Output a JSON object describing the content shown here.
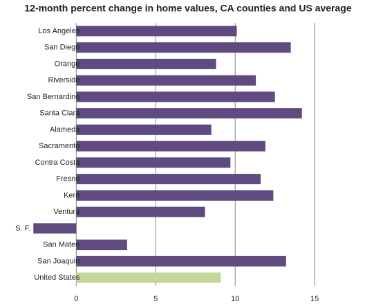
{
  "chart_data": {
    "type": "barh",
    "title": "12-month percent change in home values, CA counties and US average",
    "categories": [
      "Los Angeles",
      "San Diego",
      "Orange",
      "Riverside",
      "San Bernardino",
      "Santa Clara",
      "Alameda",
      "Sacramento",
      "Contra Costa",
      "Fresno",
      "Kern",
      "Ventura",
      "S. F.",
      "San Mateo",
      "San Joaquin",
      "United States"
    ],
    "values": [
      10.1,
      13.5,
      8.8,
      11.3,
      12.5,
      14.2,
      8.5,
      11.9,
      9.7,
      11.6,
      12.4,
      8.1,
      -2.7,
      3.2,
      13.2,
      9.1
    ],
    "colors": [
      "#5f4b7f",
      "#5f4b7f",
      "#5f4b7f",
      "#5f4b7f",
      "#5f4b7f",
      "#5f4b7f",
      "#5f4b7f",
      "#5f4b7f",
      "#5f4b7f",
      "#5f4b7f",
      "#5f4b7f",
      "#5f4b7f",
      "#5f4b7f",
      "#5f4b7f",
      "#5f4b7f",
      "#c4d79b"
    ],
    "xlim": [
      -4.8,
      18.3
    ],
    "xticks": [
      0,
      5,
      10,
      15
    ],
    "grid": true
  }
}
